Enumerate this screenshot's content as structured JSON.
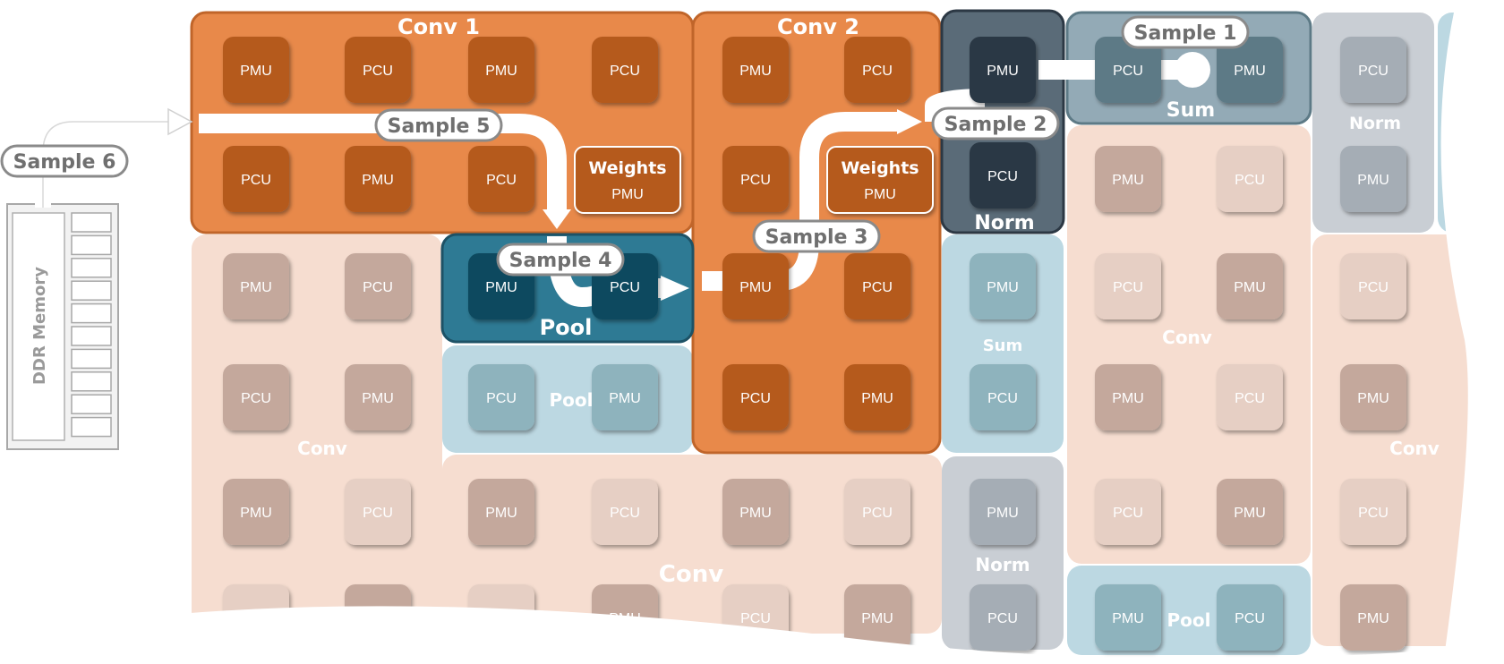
{
  "diagram": {
    "memory_label": "DDR Memory",
    "unit_labels": {
      "pmu": "PMU",
      "pcu": "PCU"
    },
    "weights_label": "Weights",
    "colors": {
      "conv_active": "#e8894a",
      "conv_active_border": "#c0652a",
      "conv_active_unit": "#b55a1f",
      "conv_faded": "#f6ddd0",
      "conv_faded_unit_a": "#c4a89c",
      "conv_faded_unit_b": "#e6cfc4",
      "pool_active": "#2e7a94",
      "pool_active_unit": "#0d4a5e",
      "pool_faded": "#bcd8e2",
      "pool_faded_unit": "#8eb3bd",
      "norm_active": "#5a6b78",
      "norm_active_unit": "#2c3844",
      "sum_active": "#93aab6",
      "sum_active_unit": "#5d7a86",
      "gray_faded": "#c9ced4",
      "gray_faded_unit": "#a5adb5",
      "path": "#ffffff"
    },
    "groups": [
      {
        "label": "Conv 1",
        "state": "active"
      },
      {
        "label": "Conv 2",
        "state": "active"
      },
      {
        "label": "Pool",
        "state": "active"
      },
      {
        "label": "Norm",
        "state": "active"
      },
      {
        "label": "Sum",
        "state": "active"
      },
      {
        "label": "Conv",
        "state": "faded"
      },
      {
        "label": "Pool",
        "state": "faded"
      },
      {
        "label": "Sum",
        "state": "faded"
      },
      {
        "label": "Norm",
        "state": "faded"
      }
    ],
    "samples": [
      "Sample 1",
      "Sample 2",
      "Sample 3",
      "Sample 4",
      "Sample 5",
      "Sample 6"
    ]
  }
}
